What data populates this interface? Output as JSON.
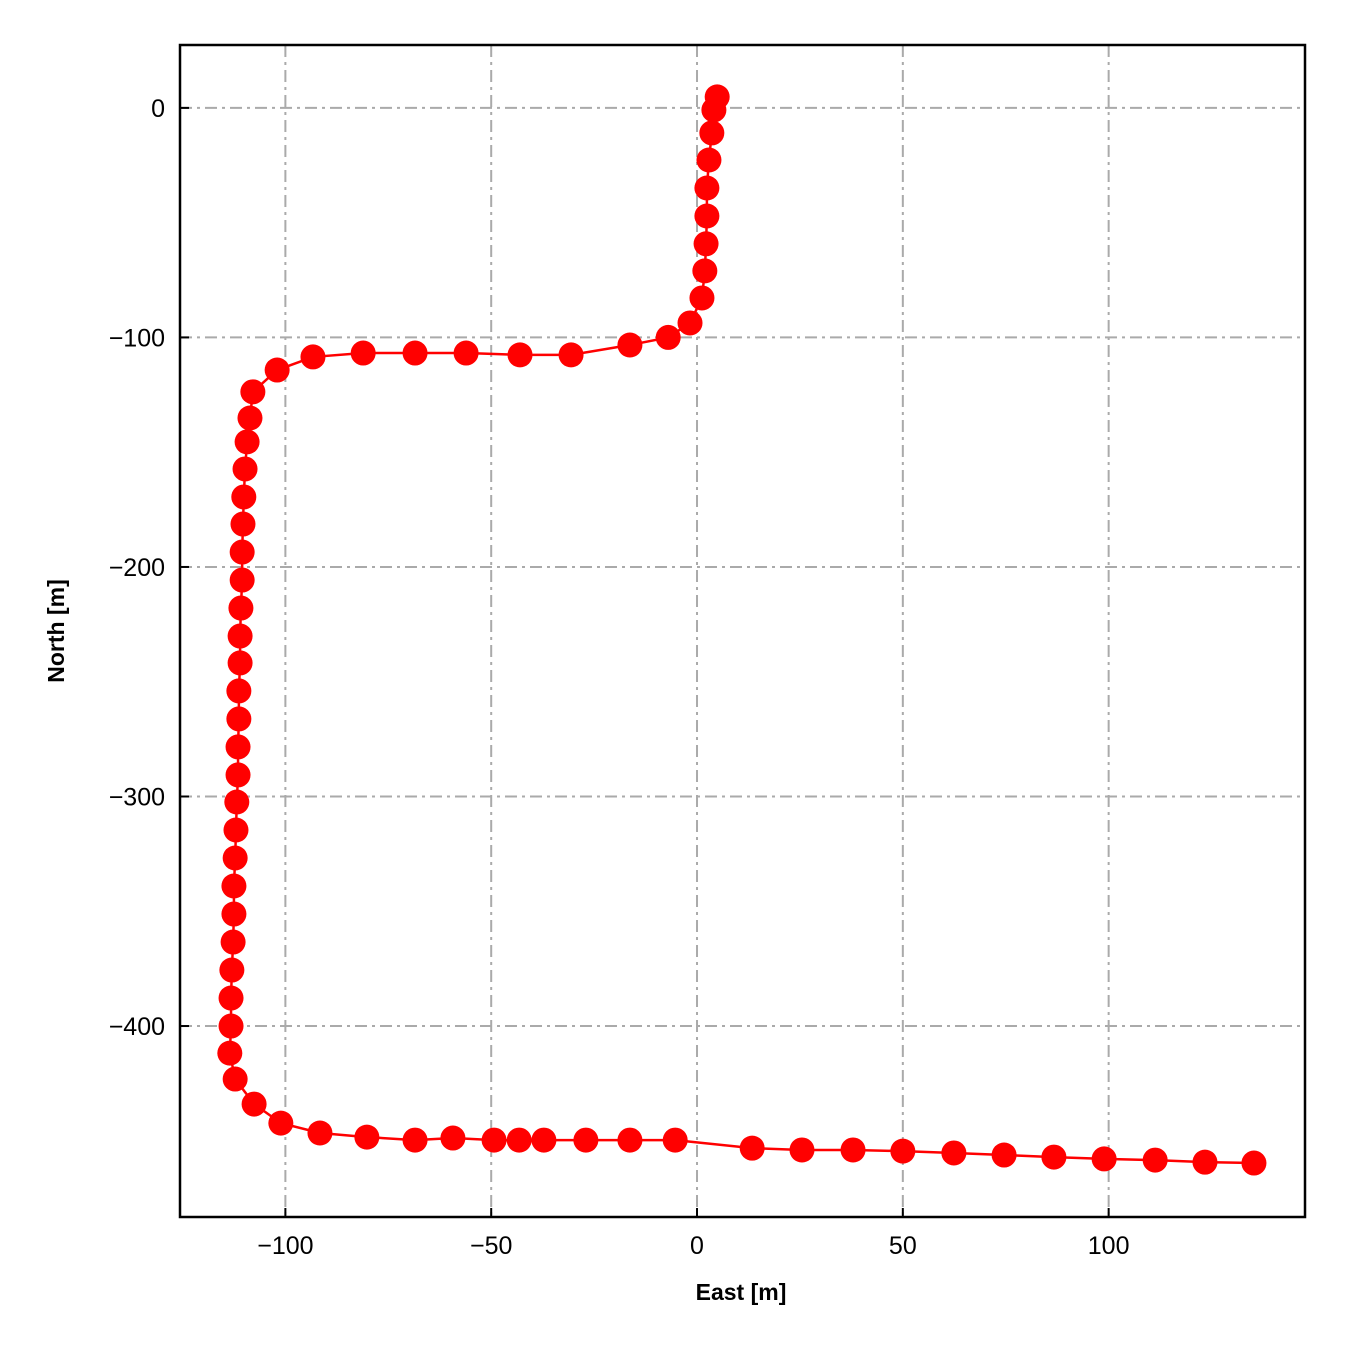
{
  "chart_data": {
    "type": "line",
    "xlabel": "East [m]",
    "ylabel": "North [m]",
    "x": [
      4.9,
      4.1,
      3.6,
      2.9,
      2.4,
      2.4,
      2.2,
      1.9,
      1.2,
      -1.7,
      -7.0,
      -16.3,
      -30.6,
      -43.0,
      -56.1,
      -68.5,
      -81.1,
      -93.3,
      -102.0,
      -107.9,
      -108.6,
      -109.3,
      -109.8,
      -110.1,
      -110.3,
      -110.5,
      -110.5,
      -110.8,
      -111.0,
      -111.0,
      -111.3,
      -111.3,
      -111.5,
      -111.5,
      -111.8,
      -112.0,
      -112.2,
      -112.5,
      -112.5,
      -112.7,
      -113.0,
      -113.2,
      -113.2,
      -113.5,
      -112.2,
      -107.6,
      -101.1,
      -91.6,
      -80.2,
      -68.5,
      -59.3,
      -49.3,
      -43.2,
      -37.2,
      -27.0,
      -16.3,
      -5.3,
      13.4,
      25.5,
      37.9,
      50.0,
      62.4,
      74.6,
      86.7,
      98.9,
      111.3,
      123.4,
      135.3
    ],
    "values": [
      4.8,
      -0.9,
      -10.9,
      -22.7,
      -34.9,
      -47.1,
      -59.2,
      -71.0,
      -82.8,
      -93.7,
      -100.0,
      -103.3,
      -107.6,
      -107.6,
      -106.8,
      -106.8,
      -106.8,
      -108.5,
      -114.2,
      -123.7,
      -135.1,
      -145.5,
      -157.3,
      -169.5,
      -181.3,
      -193.5,
      -205.7,
      -217.9,
      -230.1,
      -241.8,
      -254.0,
      -266.2,
      -278.4,
      -290.6,
      -302.4,
      -314.6,
      -326.8,
      -339.0,
      -351.2,
      -363.4,
      -375.6,
      -387.8,
      -400.0,
      -411.8,
      -423.1,
      -434.0,
      -442.3,
      -446.6,
      -448.4,
      -449.7,
      -448.8,
      -449.7,
      -449.7,
      -449.7,
      -449.7,
      -449.7,
      -449.7,
      -453.2,
      -454.0,
      -454.0,
      -454.5,
      -455.3,
      -456.2,
      -457.1,
      -457.9,
      -458.4,
      -459.3,
      -459.7
    ],
    "color": "#ff0000",
    "xlim": [
      -125.6,
      147.7
    ],
    "ylim": [
      -483.2,
      27.4
    ],
    "xticks": [
      {
        "value": -100,
        "label": "−100"
      },
      {
        "value": -50,
        "label": "−50"
      },
      0,
      50,
      100
    ],
    "yticks": [
      {
        "value": -400,
        "label": "−400"
      },
      {
        "value": -300,
        "label": "−300"
      },
      {
        "value": -200,
        "label": "−200"
      },
      {
        "value": -100,
        "label": "−100"
      },
      0
    ],
    "grid": true
  }
}
